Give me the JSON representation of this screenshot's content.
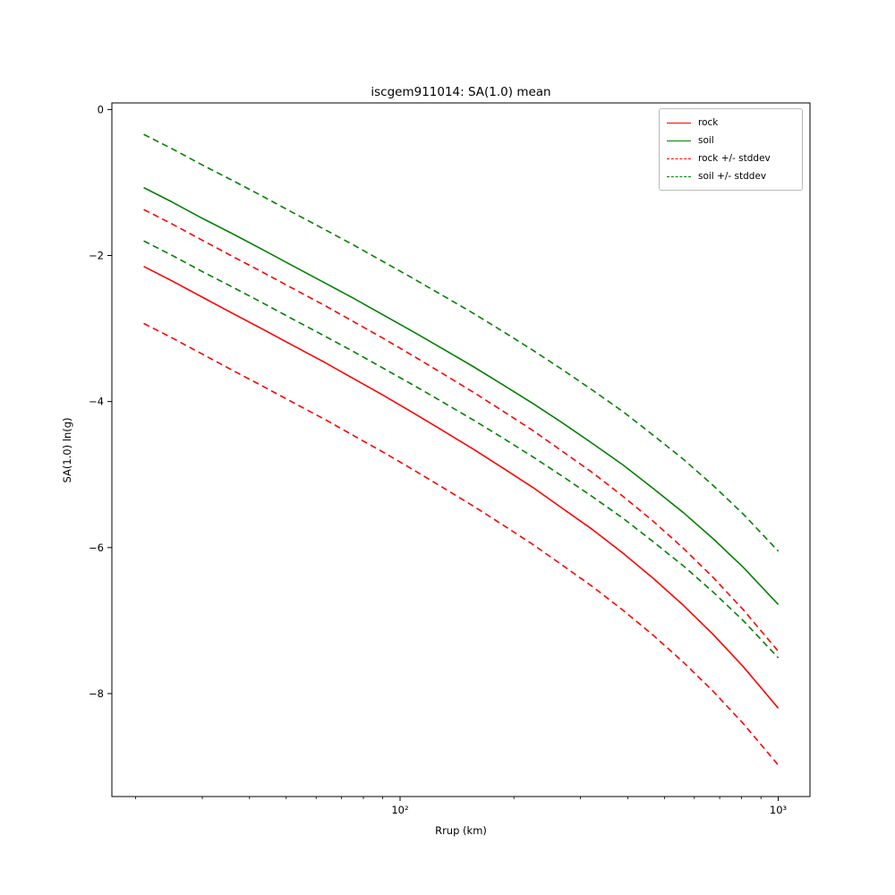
{
  "figure": {
    "title": "iscgem911014: SA(1.0) mean",
    "xlabel": "Rrup (km)",
    "ylabel": "SA(1.0) ln(g)"
  },
  "legend": {
    "position": "upper right",
    "entries": [
      {
        "label": "rock",
        "color": "#ff0000",
        "dash": false
      },
      {
        "label": "soil",
        "color": "#008000",
        "dash": false
      },
      {
        "label": "rock +/- stddev",
        "color": "#ff0000",
        "dash": true
      },
      {
        "label": "soil +/- stddev",
        "color": "#008000",
        "dash": true
      }
    ]
  },
  "chart_data": {
    "type": "line",
    "title": "iscgem911014: SA(1.0) mean",
    "xlabel": "Rrup (km)",
    "ylabel": "SA(1.0) ln(g)",
    "x_scale": "log",
    "grid": false,
    "legend_position": "upper right",
    "xlim": [
      17.3,
      1213
    ],
    "ylim": [
      -9.41,
      0.09
    ],
    "x_major_ticks": [
      {
        "value": 100,
        "label": "10²"
      },
      {
        "value": 1000,
        "label": "10³"
      }
    ],
    "x_minor_ticks": [
      20,
      30,
      40,
      50,
      60,
      70,
      80,
      90,
      200,
      300,
      400,
      500,
      600,
      700,
      800,
      900
    ],
    "y_ticks": [
      {
        "value": 0,
        "label": "0"
      },
      {
        "value": -2,
        "label": "−2"
      },
      {
        "value": -4,
        "label": "−4"
      },
      {
        "value": -6,
        "label": "−6"
      },
      {
        "value": -8,
        "label": "−8"
      }
    ],
    "stddev": {
      "rock": 0.78,
      "soil": 0.73
    },
    "x": [
      21,
      25,
      30,
      36,
      43,
      52,
      63,
      75,
      90,
      108,
      130,
      156,
      187,
      225,
      270,
      324,
      389,
      467,
      561,
      673,
      808,
      1000
    ],
    "series": [
      {
        "name": "rock",
        "color": "#ff0000",
        "style": "solid",
        "values": [
          -2.15,
          -2.35,
          -2.57,
          -2.79,
          -3.0,
          -3.23,
          -3.46,
          -3.68,
          -3.91,
          -4.15,
          -4.4,
          -4.65,
          -4.91,
          -5.18,
          -5.47,
          -5.76,
          -6.08,
          -6.42,
          -6.79,
          -7.19,
          -7.63,
          -8.2
        ]
      },
      {
        "name": "soil",
        "color": "#008000",
        "style": "solid",
        "values": [
          -1.07,
          -1.27,
          -1.49,
          -1.7,
          -1.91,
          -2.14,
          -2.37,
          -2.58,
          -2.81,
          -3.04,
          -3.28,
          -3.52,
          -3.77,
          -4.03,
          -4.3,
          -4.58,
          -4.87,
          -5.19,
          -5.52,
          -5.88,
          -6.27,
          -6.78
        ]
      },
      {
        "name": "rock plus stddev",
        "color": "#ff0000",
        "style": "dashed",
        "values": [
          -1.37,
          -1.57,
          -1.79,
          -2.01,
          -2.22,
          -2.45,
          -2.68,
          -2.9,
          -3.13,
          -3.37,
          -3.62,
          -3.87,
          -4.13,
          -4.4,
          -4.69,
          -4.98,
          -5.3,
          -5.64,
          -6.01,
          -6.41,
          -6.85,
          -7.42
        ]
      },
      {
        "name": "rock minus stddev",
        "color": "#ff0000",
        "style": "dashed",
        "values": [
          -2.93,
          -3.13,
          -3.35,
          -3.57,
          -3.78,
          -4.01,
          -4.24,
          -4.46,
          -4.69,
          -4.93,
          -5.18,
          -5.43,
          -5.69,
          -5.96,
          -6.25,
          -6.54,
          -6.86,
          -7.2,
          -7.57,
          -7.97,
          -8.41,
          -8.98
        ]
      },
      {
        "name": "soil plus stddev",
        "color": "#008000",
        "style": "dashed",
        "values": [
          -0.34,
          -0.54,
          -0.76,
          -0.97,
          -1.18,
          -1.41,
          -1.64,
          -1.85,
          -2.08,
          -2.31,
          -2.55,
          -2.79,
          -3.04,
          -3.3,
          -3.57,
          -3.85,
          -4.14,
          -4.46,
          -4.79,
          -5.15,
          -5.54,
          -6.05
        ]
      },
      {
        "name": "soil minus stddev",
        "color": "#008000",
        "style": "dashed",
        "values": [
          -1.8,
          -2.0,
          -2.22,
          -2.43,
          -2.64,
          -2.87,
          -3.1,
          -3.31,
          -3.54,
          -3.77,
          -4.01,
          -4.25,
          -4.5,
          -4.76,
          -5.03,
          -5.31,
          -5.6,
          -5.92,
          -6.25,
          -6.61,
          -7.0,
          -7.51
        ]
      }
    ]
  }
}
